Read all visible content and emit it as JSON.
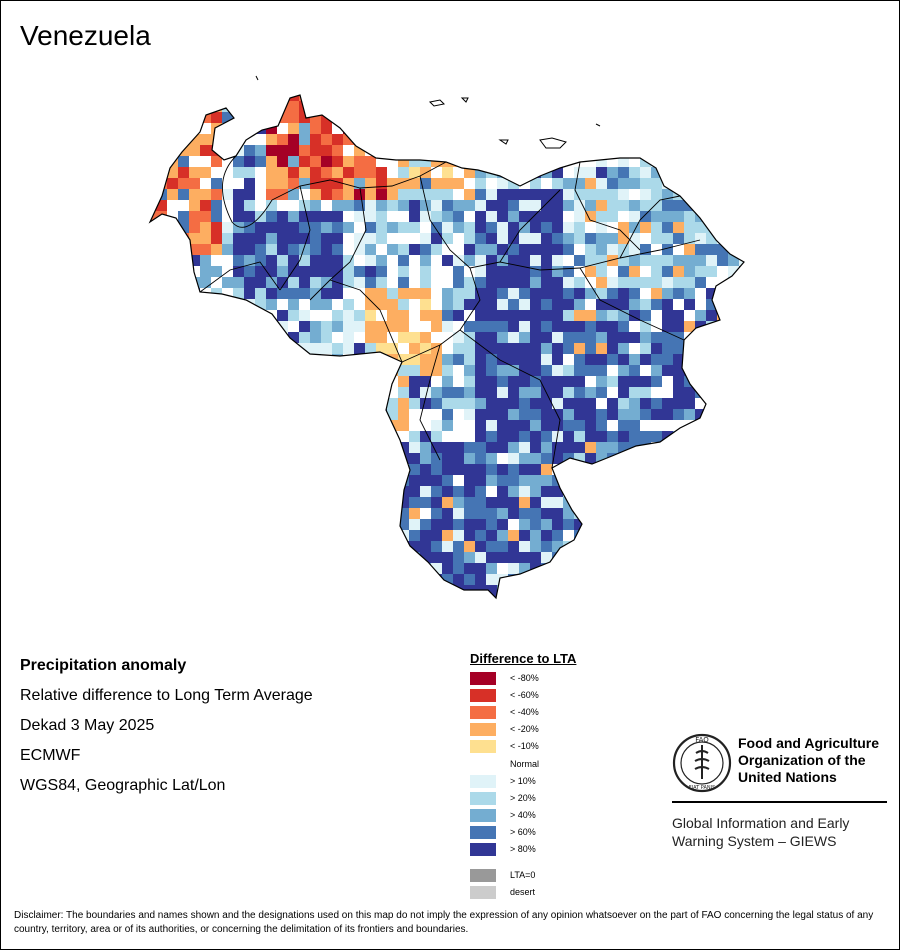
{
  "map": {
    "title": "Venezuela",
    "colors": {
      "boundary": "#000000",
      "territory_outline": "#000000"
    }
  },
  "info": {
    "line1": "Precipitation anomaly",
    "line2": "Relative difference to Long Term Average",
    "line3": "Dekad 3 May 2025",
    "line4": "ECMWF",
    "line5": "WGS84, Geographic Lat/Lon"
  },
  "legend": {
    "title": "Difference to LTA",
    "items": [
      {
        "label": "< -80%",
        "color": "#a50026"
      },
      {
        "label": "< -60%",
        "color": "#d73027"
      },
      {
        "label": "< -40%",
        "color": "#f46d43"
      },
      {
        "label": "< -20%",
        "color": "#fdae61"
      },
      {
        "label": "< -10%",
        "color": "#fee090"
      },
      {
        "label": "Normal",
        "color": "#ffffff"
      },
      {
        "label": "> 10%",
        "color": "#e0f3f8"
      },
      {
        "label": "> 20%",
        "color": "#abd9e9"
      },
      {
        "label": "> 40%",
        "color": "#74add1"
      },
      {
        "label": "> 60%",
        "color": "#4575b4"
      },
      {
        "label": "> 80%",
        "color": "#313695"
      }
    ],
    "extra": [
      {
        "label": "LTA=0",
        "color": "#999999"
      },
      {
        "label": "desert",
        "color": "#cccccc"
      }
    ]
  },
  "fao": {
    "name_line1": "Food and Agriculture",
    "name_line2": "Organization of the",
    "name_line3": "United Nations",
    "giews_line1": "Global Information and Early",
    "giews_line2": "Warning System – GIEWS",
    "logo_text_top": "FAO",
    "logo_text_bottom": "FIAT PANIS"
  },
  "disclaimer": "Disclaimer: The boundaries and names shown and the designations used on this map do not imply the expression of any opinion whatsoever on the part of FAO concerning the legal status of any country, territory, area or of its authorities, or concerning the delimitation of its frontiers and boundaries."
}
